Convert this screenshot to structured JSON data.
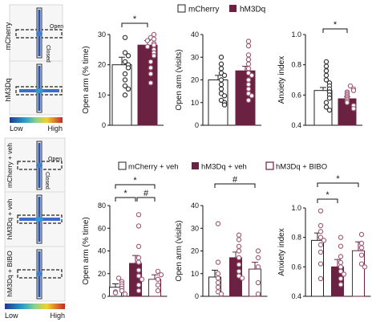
{
  "colors": {
    "mcherry": "#ffffff",
    "hm3dq": "#6b2242",
    "bibo": "#ffffff",
    "point_mcherry": "#333333",
    "point_hm3dq": "#a0617a",
    "heat_low": "#1f3a93",
    "heat_high": "#c62828"
  },
  "top_legend": {
    "mcherry": "mCherry",
    "hm3dq": "hM3Dq"
  },
  "bottom_legend": {
    "mcherry_veh": "mCherry + veh",
    "hm3dq_veh": "hM3Dq + veh",
    "hm3dq_bibo": "hM3Dq + BIBO"
  },
  "maze_top": {
    "rows": [
      "mCherry",
      "hM3Dq"
    ],
    "arm_labels": {
      "open": "Open",
      "closed": "Closed"
    },
    "scale": {
      "low": "Low",
      "high": "High"
    }
  },
  "maze_bottom": {
    "rows": [
      "mCherry + veh",
      "hM3Dq + veh",
      "hM3Dq + BIBO"
    ],
    "arm_labels": {
      "open": "Open",
      "closed": "Closed"
    },
    "scale": {
      "low": "Low",
      "high": "High"
    }
  },
  "chart_data": [
    {
      "type": "bar",
      "ylabel": "Open arm (% time)",
      "ylim": [
        0,
        30
      ],
      "yticks": [
        "0",
        "10",
        "20",
        "30"
      ],
      "categories": [
        "mCherry",
        "hM3Dq"
      ],
      "values": [
        20,
        26.5
      ],
      "errors": [
        2.5,
        1.5
      ],
      "points": [
        [
          24,
          23,
          21,
          20,
          19,
          17,
          15,
          13,
          12,
          10,
          29
        ],
        [
          29,
          28.5,
          28,
          27,
          26.5,
          26,
          25,
          24,
          23,
          21,
          19,
          17,
          14,
          30
        ]
      ],
      "significance": [
        "*"
      ]
    },
    {
      "type": "bar",
      "ylabel": "Open arm (visits)",
      "ylim": [
        0,
        40
      ],
      "yticks": [
        "0",
        "10",
        "20",
        "30",
        "40"
      ],
      "categories": [
        "mCherry",
        "hM3Dq"
      ],
      "values": [
        20,
        24
      ],
      "errors": [
        2,
        2
      ],
      "points": [
        [
          30,
          27,
          25,
          23,
          22,
          20,
          18,
          16,
          14,
          13,
          11,
          10,
          9
        ],
        [
          37,
          35,
          31,
          29,
          27,
          25,
          23,
          22,
          20,
          18,
          16,
          14,
          13,
          11
        ]
      ],
      "significance": []
    },
    {
      "type": "bar",
      "ylabel": "Anxiety index",
      "ylim": [
        0.4,
        1.0
      ],
      "yticks": [
        "0.4",
        "0.6",
        "0.8",
        "1.0"
      ],
      "categories": [
        "mCherry",
        "hM3Dq"
      ],
      "values": [
        0.63,
        0.575
      ],
      "errors": [
        0.02,
        0.015
      ],
      "points": [
        [
          0.82,
          0.79,
          0.76,
          0.73,
          0.7,
          0.68,
          0.66,
          0.64,
          0.62,
          0.6,
          0.58,
          0.55,
          0.52,
          0.5
        ],
        [
          0.66,
          0.64,
          0.63,
          0.62,
          0.61,
          0.6,
          0.59,
          0.58,
          0.57,
          0.56,
          0.55,
          0.53,
          0.51
        ]
      ],
      "significance": [
        "*"
      ]
    },
    {
      "type": "bar",
      "ylabel": "Open arm (% time)",
      "ylim": [
        0,
        80
      ],
      "yticks": [
        "0",
        "20",
        "40",
        "60",
        "80"
      ],
      "categories": [
        "mCherry + veh",
        "hM3Dq + veh",
        "hM3Dq + BIBO"
      ],
      "values": [
        8,
        29,
        15
      ],
      "errors": [
        3,
        7,
        4
      ],
      "points": [
        [
          16,
          13,
          11,
          9,
          7,
          5,
          4,
          3,
          2
        ],
        [
          72,
          62,
          44,
          34,
          30,
          23,
          18,
          15,
          10,
          5
        ],
        [
          22,
          19,
          15,
          10,
          5
        ]
      ],
      "significance": [
        "*",
        "*",
        "#"
      ]
    },
    {
      "type": "bar",
      "ylabel": "Open arm (visits)",
      "ylim": [
        0,
        40
      ],
      "yticks": [
        "0",
        "10",
        "20",
        "30",
        "40"
      ],
      "categories": [
        "mCherry + veh",
        "hM3Dq + veh",
        "hM3Dq + BIBO"
      ],
      "values": [
        8.5,
        17,
        12
      ],
      "errors": [
        3,
        2.5,
        3
      ],
      "points": [
        [
          32,
          15,
          10,
          8,
          6,
          4,
          2,
          1
        ],
        [
          27,
          25,
          22,
          20,
          17,
          14,
          11,
          9,
          8
        ],
        [
          20,
          17,
          13,
          6,
          1
        ]
      ],
      "significance": [
        "#"
      ]
    },
    {
      "type": "bar",
      "ylabel": "Anxiety index",
      "ylim": [
        0.4,
        1.0
      ],
      "yticks": [
        "0.4",
        "0.6",
        "0.8",
        "1.0"
      ],
      "categories": [
        "mCherry + veh",
        "hM3Dq + veh",
        "hM3Dq + BIBO"
      ],
      "values": [
        0.78,
        0.6,
        0.71
      ],
      "errors": [
        0.05,
        0.05,
        0.06
      ],
      "points": [
        [
          0.98,
          0.88,
          0.84,
          0.8,
          0.78,
          0.75,
          0.7,
          0.62,
          0.52
        ],
        [
          0.8,
          0.74,
          0.67,
          0.63,
          0.6,
          0.57,
          0.55,
          0.52,
          0.48
        ],
        [
          0.82,
          0.76,
          0.73,
          0.68,
          0.62,
          0.6
        ]
      ],
      "significance": [
        "*",
        "*"
      ]
    }
  ]
}
